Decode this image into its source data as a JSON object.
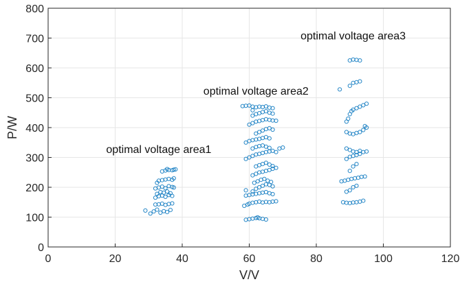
{
  "chart_data": {
    "type": "scatter",
    "xlabel": "V/V",
    "ylabel": "P/W",
    "xlim": [
      0,
      120
    ],
    "ylim": [
      0,
      800
    ],
    "xticks": [
      0,
      20,
      40,
      60,
      80,
      100,
      120
    ],
    "yticks": [
      0,
      100,
      200,
      300,
      400,
      500,
      600,
      700,
      800
    ],
    "grid": true,
    "marker_color": "#0072BD",
    "annotations": [
      {
        "text": "optimal voltage area1",
        "x": 33,
        "y": 315
      },
      {
        "text": "optimal voltage area2",
        "x": 62,
        "y": 510
      },
      {
        "text": "optimal voltage area3",
        "x": 91,
        "y": 695
      }
    ],
    "series": [
      {
        "points": [
          [
            29,
            122
          ],
          [
            30.5,
            112
          ],
          [
            31.5,
            119
          ],
          [
            32.5,
            125
          ],
          [
            33.5,
            115
          ],
          [
            34.5,
            120
          ],
          [
            35.5,
            117
          ],
          [
            36.5,
            124
          ],
          [
            32,
            142
          ],
          [
            33,
            143
          ],
          [
            34,
            145
          ],
          [
            35,
            141
          ],
          [
            36,
            144
          ],
          [
            37,
            146
          ],
          [
            32,
            165
          ],
          [
            33,
            170
          ],
          [
            34,
            172
          ],
          [
            35,
            168
          ],
          [
            36,
            174
          ],
          [
            37,
            171
          ],
          [
            32.5,
            178
          ],
          [
            33.5,
            184
          ],
          [
            34.5,
            182
          ],
          [
            35.5,
            186
          ],
          [
            36.5,
            180
          ],
          [
            32,
            196
          ],
          [
            33,
            199
          ],
          [
            34,
            202
          ],
          [
            35,
            197
          ],
          [
            36,
            204
          ],
          [
            37,
            201
          ],
          [
            37.5,
            199
          ],
          [
            32.5,
            215
          ],
          [
            33,
            222
          ],
          [
            34,
            224
          ],
          [
            35,
            226
          ],
          [
            36,
            228
          ],
          [
            37,
            225
          ],
          [
            37.5,
            230
          ],
          [
            34,
            253
          ],
          [
            35,
            256
          ],
          [
            36,
            258
          ],
          [
            37,
            257
          ],
          [
            37.5,
            259
          ],
          [
            38,
            260
          ],
          [
            35.5,
            261
          ]
        ]
      },
      {
        "points": [
          [
            59,
            91
          ],
          [
            60,
            93
          ],
          [
            61,
            95
          ],
          [
            62,
            97
          ],
          [
            63,
            96
          ],
          [
            64,
            94
          ],
          [
            65,
            92
          ],
          [
            62.5,
            99
          ],
          [
            58.5,
            138
          ],
          [
            59.5,
            142
          ],
          [
            60,
            145
          ],
          [
            61,
            148
          ],
          [
            62,
            150
          ],
          [
            63,
            152
          ],
          [
            64,
            149
          ],
          [
            65,
            151
          ],
          [
            66,
            150
          ],
          [
            67,
            152
          ],
          [
            68,
            153
          ],
          [
            59,
            172
          ],
          [
            60,
            174
          ],
          [
            61,
            176
          ],
          [
            62,
            178
          ],
          [
            63,
            180
          ],
          [
            64,
            182
          ],
          [
            65,
            184
          ],
          [
            66,
            180
          ],
          [
            67,
            177
          ],
          [
            59,
            190
          ],
          [
            61,
            186
          ],
          [
            62,
            195
          ],
          [
            63,
            200
          ],
          [
            64,
            205
          ],
          [
            65,
            210
          ],
          [
            66,
            208
          ],
          [
            67,
            203
          ],
          [
            61.5,
            215
          ],
          [
            62.5,
            220
          ],
          [
            63.5,
            225
          ],
          [
            64.5,
            228
          ],
          [
            65.5,
            222
          ],
          [
            66.5,
            218
          ],
          [
            61,
            240
          ],
          [
            62,
            245
          ],
          [
            63,
            250
          ],
          [
            64,
            252
          ],
          [
            65,
            255
          ],
          [
            66,
            258
          ],
          [
            67,
            262
          ],
          [
            68,
            265
          ],
          [
            62,
            270
          ],
          [
            63,
            274
          ],
          [
            64,
            278
          ],
          [
            65,
            282
          ],
          [
            66,
            276
          ],
          [
            67,
            271
          ],
          [
            59,
            295
          ],
          [
            60,
            300
          ],
          [
            61,
            305
          ],
          [
            62,
            310
          ],
          [
            63,
            312
          ],
          [
            64,
            315
          ],
          [
            65,
            318
          ],
          [
            66,
            320
          ],
          [
            67,
            322
          ],
          [
            68,
            318
          ],
          [
            69,
            330
          ],
          [
            70,
            333
          ],
          [
            61,
            330
          ],
          [
            62,
            335
          ],
          [
            63,
            338
          ],
          [
            64,
            340
          ],
          [
            65,
            336
          ],
          [
            66,
            332
          ],
          [
            59,
            350
          ],
          [
            60,
            355
          ],
          [
            61,
            358
          ],
          [
            62,
            360
          ],
          [
            63,
            362
          ],
          [
            64,
            365
          ],
          [
            65,
            368
          ],
          [
            66,
            364
          ],
          [
            62,
            380
          ],
          [
            63,
            385
          ],
          [
            64,
            390
          ],
          [
            65,
            395
          ],
          [
            66,
            398
          ],
          [
            67,
            393
          ],
          [
            60,
            410
          ],
          [
            61,
            415
          ],
          [
            62,
            420
          ],
          [
            63,
            422
          ],
          [
            64,
            425
          ],
          [
            65,
            428
          ],
          [
            66,
            426
          ],
          [
            67,
            424
          ],
          [
            68,
            423
          ],
          [
            61,
            440
          ],
          [
            62,
            445
          ],
          [
            63,
            448
          ],
          [
            64,
            452
          ],
          [
            65,
            455
          ],
          [
            66,
            450
          ],
          [
            67,
            447
          ],
          [
            58,
            472
          ],
          [
            59,
            473
          ],
          [
            60,
            474
          ],
          [
            61,
            470
          ],
          [
            62,
            468
          ],
          [
            63,
            470
          ],
          [
            64,
            469
          ],
          [
            65,
            471
          ],
          [
            66,
            467
          ],
          [
            67,
            465
          ],
          [
            61,
            458
          ]
        ]
      },
      {
        "points": [
          [
            87.5,
            220
          ],
          [
            88.5,
            222
          ],
          [
            89.5,
            225
          ],
          [
            90.5,
            228
          ],
          [
            91.5,
            230
          ],
          [
            92.5,
            232
          ],
          [
            93.5,
            235
          ],
          [
            94.5,
            236
          ],
          [
            88,
            150
          ],
          [
            89,
            148
          ],
          [
            90,
            147
          ],
          [
            91,
            149
          ],
          [
            92,
            150
          ],
          [
            93,
            152
          ],
          [
            94,
            155
          ],
          [
            89,
            185
          ],
          [
            90,
            190
          ],
          [
            91,
            200
          ],
          [
            92,
            205
          ],
          [
            90,
            255
          ],
          [
            91,
            270
          ],
          [
            92,
            278
          ],
          [
            89,
            295
          ],
          [
            90,
            302
          ],
          [
            91,
            305
          ],
          [
            92,
            308
          ],
          [
            93,
            312
          ],
          [
            94,
            318
          ],
          [
            95,
            320
          ],
          [
            89,
            330
          ],
          [
            90,
            325
          ],
          [
            91,
            320
          ],
          [
            92,
            318
          ],
          [
            93,
            322
          ],
          [
            89,
            385
          ],
          [
            90,
            380
          ],
          [
            91,
            378
          ],
          [
            92,
            382
          ],
          [
            93,
            385
          ],
          [
            94,
            392
          ],
          [
            95,
            400
          ],
          [
            94.5,
            405
          ],
          [
            89,
            420
          ],
          [
            89.5,
            430
          ],
          [
            90,
            445
          ],
          [
            90.5,
            455
          ],
          [
            91,
            460
          ],
          [
            92,
            465
          ],
          [
            93,
            470
          ],
          [
            94,
            475
          ],
          [
            95,
            480
          ],
          [
            87,
            528
          ],
          [
            90,
            540
          ],
          [
            91,
            550
          ],
          [
            92,
            552
          ],
          [
            93,
            555
          ],
          [
            90,
            625
          ],
          [
            91,
            628
          ],
          [
            92,
            627
          ],
          [
            93,
            625
          ]
        ]
      }
    ]
  }
}
